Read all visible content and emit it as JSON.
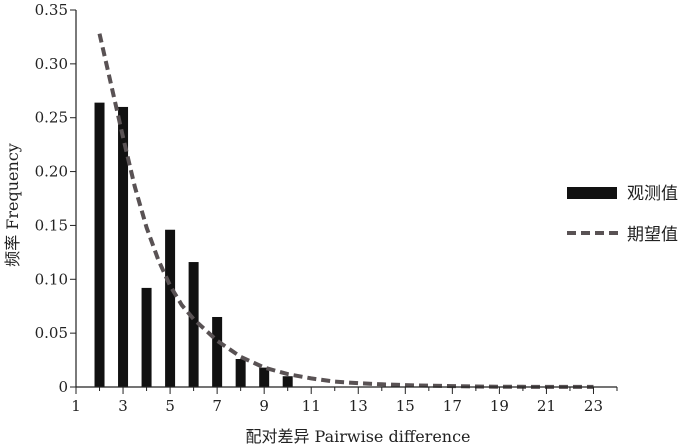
{
  "chart_data": {
    "type": "bar",
    "xlabel": "配对差异 Pairwise difference",
    "ylabel": "频率 Frequency",
    "xlim": [
      1,
      24
    ],
    "ylim": [
      0,
      0.35
    ],
    "x_ticks": [
      1,
      3,
      5,
      7,
      9,
      11,
      13,
      15,
      17,
      19,
      21,
      23
    ],
    "y_ticks": [
      "0",
      "0.05",
      "0.10",
      "0.15",
      "0.20",
      "0.25",
      "0.30",
      "0.35"
    ],
    "grid": false,
    "legend_position": "right",
    "colors": {
      "observed": "#111111",
      "expected": "#595254"
    },
    "series": [
      {
        "name": "观测值",
        "type": "bar",
        "x": [
          2,
          3,
          4,
          5,
          6,
          7,
          8,
          9,
          10
        ],
        "values": [
          0.264,
          0.26,
          0.092,
          0.146,
          0.116,
          0.065,
          0.026,
          0.018,
          0.01
        ]
      },
      {
        "name": "期望值",
        "type": "line",
        "style": "dashed",
        "x": [
          2,
          2.5,
          3,
          3.5,
          4,
          4.5,
          5,
          5.5,
          6,
          7,
          8,
          9,
          10,
          11,
          12,
          13,
          14,
          15,
          16,
          17,
          18,
          19,
          20,
          21,
          22,
          23
        ],
        "values": [
          0.328,
          0.28,
          0.232,
          0.186,
          0.148,
          0.118,
          0.094,
          0.076,
          0.063,
          0.043,
          0.028,
          0.018,
          0.012,
          0.008,
          0.005,
          0.0035,
          0.0025,
          0.0018,
          0.0012,
          0.0008,
          0.0005,
          0.0003,
          0.0002,
          0.0001,
          0.0001,
          0.0001
        ]
      }
    ]
  }
}
